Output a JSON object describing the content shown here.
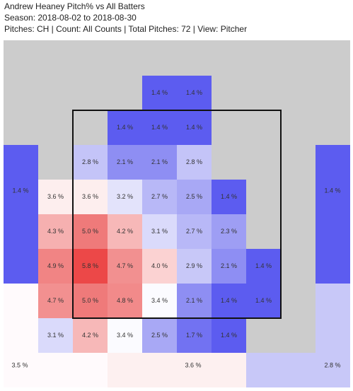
{
  "header": {
    "title": "Andrew Heaney Pitch% vs All Batters",
    "season": "Season: 2018-08-02 to 2018-08-30",
    "info": "Pitches: CH | Count: All Counts | Total Pitches: 72 | View: Pitcher"
  },
  "chart_data": {
    "type": "heatmap",
    "zones": [
      {
        "value": 1.4,
        "label": "1.4 %",
        "color": "#5c5cf0"
      },
      {
        "value": 1.4,
        "label": "1.4 %",
        "color": "#5c5cf0"
      },
      {
        "value": 1.4,
        "label": "1.4 %",
        "color": "#5c5cf0"
      },
      {
        "value": 1.4,
        "label": "1.4 %",
        "color": "#5c5cf0"
      },
      {
        "value": 1.4,
        "label": "1.4 %",
        "color": "#5c5cf0"
      },
      {
        "value": 2.8,
        "label": "2.8 %",
        "color": "#c4c4f8"
      },
      {
        "value": 2.1,
        "label": "2.1 %",
        "color": "#8e8ef3"
      },
      {
        "value": 2.1,
        "label": "2.1 %",
        "color": "#8e8ef3"
      },
      {
        "value": 2.8,
        "label": "2.8 %",
        "color": "#c4c4f8"
      },
      {
        "value": 3.6,
        "label": "3.6 %",
        "color": "#fdeeee"
      },
      {
        "value": 3.6,
        "label": "3.6 %",
        "color": "#fdeeee"
      },
      {
        "value": 3.2,
        "label": "3.2 %",
        "color": "#e3e3fb"
      },
      {
        "value": 2.7,
        "label": "2.7 %",
        "color": "#b8b8f7"
      },
      {
        "value": 2.5,
        "label": "2.5 %",
        "color": "#a8a8f5"
      },
      {
        "value": 1.4,
        "label": "1.4 %",
        "color": "#5c5cf0"
      },
      {
        "value": 4.3,
        "label": "4.3 %",
        "color": "#f6b0b0"
      },
      {
        "value": 5.0,
        "label": "5.0 %",
        "color": "#ef7a7a"
      },
      {
        "value": 4.2,
        "label": "4.2 %",
        "color": "#f7b8b8"
      },
      {
        "value": 3.1,
        "label": "3.1 %",
        "color": "#dadafb"
      },
      {
        "value": 2.7,
        "label": "2.7 %",
        "color": "#b8b8f7"
      },
      {
        "value": 2.3,
        "label": "2.3 %",
        "color": "#9e9ef4"
      },
      {
        "value": 4.9,
        "label": "4.9 %",
        "color": "#f18484"
      },
      {
        "value": 5.8,
        "label": "5.8 %",
        "color": "#ec4848"
      },
      {
        "value": 4.7,
        "label": "4.7 %",
        "color": "#f29090"
      },
      {
        "value": 4.0,
        "label": "4.0 %",
        "color": "#fbd2d2"
      },
      {
        "value": 2.9,
        "label": "2.9 %",
        "color": "#c8c8f8"
      },
      {
        "value": 2.1,
        "label": "2.1 %",
        "color": "#8e8ef3"
      },
      {
        "value": 1.4,
        "label": "1.4 %",
        "color": "#5c5cf0"
      },
      {
        "value": 4.7,
        "label": "4.7 %",
        "color": "#f29090"
      },
      {
        "value": 5.0,
        "label": "5.0 %",
        "color": "#ef7a7a"
      },
      {
        "value": 4.8,
        "label": "4.8 %",
        "color": "#f28a8a"
      },
      {
        "value": 3.4,
        "label": "3.4 %",
        "color": "#fbfbff"
      },
      {
        "value": 2.1,
        "label": "2.1 %",
        "color": "#8e8ef3"
      },
      {
        "value": 1.4,
        "label": "1.4 %",
        "color": "#5c5cf0"
      },
      {
        "value": 1.4,
        "label": "1.4 %",
        "color": "#5c5cf0"
      },
      {
        "value": 3.1,
        "label": "3.1 %",
        "color": "#dadafb"
      },
      {
        "value": 4.2,
        "label": "4.2 %",
        "color": "#f7b8b8"
      },
      {
        "value": 3.4,
        "label": "3.4 %",
        "color": "#fbfbff"
      },
      {
        "value": 2.5,
        "label": "2.5 %",
        "color": "#a8a8f5"
      },
      {
        "value": 1.7,
        "label": "1.7 %",
        "color": "#7272f2"
      },
      {
        "value": 1.4,
        "label": "1.4 %",
        "color": "#5c5cf0"
      },
      {
        "value": 1.4,
        "label": "1.4 %",
        "color": "#5c5cf0"
      },
      {
        "value": 1.4,
        "label": "1.4 %",
        "color": "#5c5cf0"
      },
      {
        "value": 3.5,
        "label": "3.5 %",
        "color": "#fffafc"
      },
      {
        "value": 3.6,
        "label": "3.6 %",
        "color": "#fdf0f0"
      },
      {
        "value": 2.8,
        "label": "2.8 %",
        "color": "#c8c8f8"
      }
    ]
  }
}
